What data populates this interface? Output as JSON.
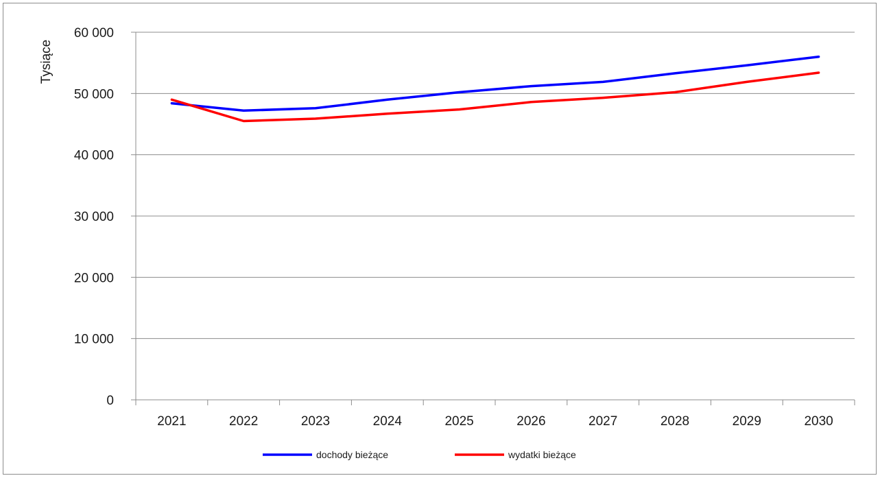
{
  "chart_data": {
    "type": "line",
    "title": "",
    "xlabel": "",
    "ylabel": "Tysiące",
    "categories": [
      "2021",
      "2022",
      "2023",
      "2024",
      "2025",
      "2026",
      "2027",
      "2028",
      "2029",
      "2030"
    ],
    "ylim": [
      0,
      60000
    ],
    "yticks": [
      0,
      10000,
      20000,
      30000,
      40000,
      50000,
      60000
    ],
    "ytick_labels": [
      "0",
      "10 000",
      "20 000",
      "30 000",
      "40 000",
      "50 000",
      "60 000"
    ],
    "grid": true,
    "legend_position": "bottom",
    "series": [
      {
        "name": "dochody bieżące",
        "color": "#0000ff",
        "values": [
          48400,
          47200,
          47600,
          49000,
          50200,
          51200,
          51900,
          53300,
          54600,
          56000
        ]
      },
      {
        "name": "wydatki bieżące",
        "color": "#ff0000",
        "values": [
          49000,
          45500,
          45900,
          46700,
          47400,
          48600,
          49300,
          50200,
          51900,
          53400
        ]
      }
    ]
  }
}
